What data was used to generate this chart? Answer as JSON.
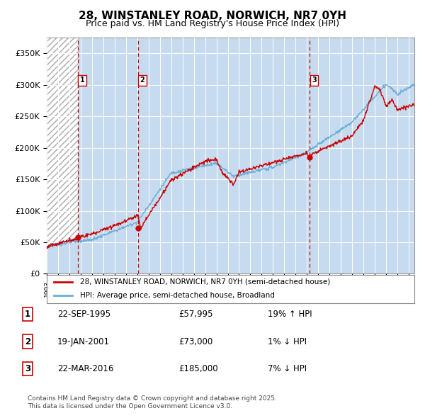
{
  "title_line1": "28, WINSTANLEY ROAD, NORWICH, NR7 0YH",
  "title_line2": "Price paid vs. HM Land Registry's House Price Index (HPI)",
  "ylim": [
    0,
    375000
  ],
  "yticks": [
    0,
    50000,
    100000,
    150000,
    200000,
    250000,
    300000,
    350000
  ],
  "ytick_labels": [
    "£0",
    "£50K",
    "£100K",
    "£150K",
    "£200K",
    "£250K",
    "£300K",
    "£350K"
  ],
  "hpi_color": "#6baed6",
  "hpi_fill_color": "#c6dbef",
  "price_color": "#cc0000",
  "vline_color": "#cc0000",
  "sale1": {
    "date_num": 1995.73,
    "price": 57995,
    "label": "1"
  },
  "sale2": {
    "date_num": 2001.05,
    "price": 73000,
    "label": "2"
  },
  "sale3": {
    "date_num": 2016.22,
    "price": 185000,
    "label": "3"
  },
  "legend_label1": "28, WINSTANLEY ROAD, NORWICH, NR7 0YH (semi-detached house)",
  "legend_label2": "HPI: Average price, semi-detached house, Broadland",
  "footer_line1": "Contains HM Land Registry data © Crown copyright and database right 2025.",
  "footer_line2": "This data is licensed under the Open Government Licence v3.0.",
  "table_rows": [
    [
      "1",
      "22-SEP-1995",
      "£57,995",
      "19% ↑ HPI"
    ],
    [
      "2",
      "19-JAN-2001",
      "£73,000",
      "1% ↓ HPI"
    ],
    [
      "3",
      "22-MAR-2016",
      "£185,000",
      "7% ↓ HPI"
    ]
  ]
}
